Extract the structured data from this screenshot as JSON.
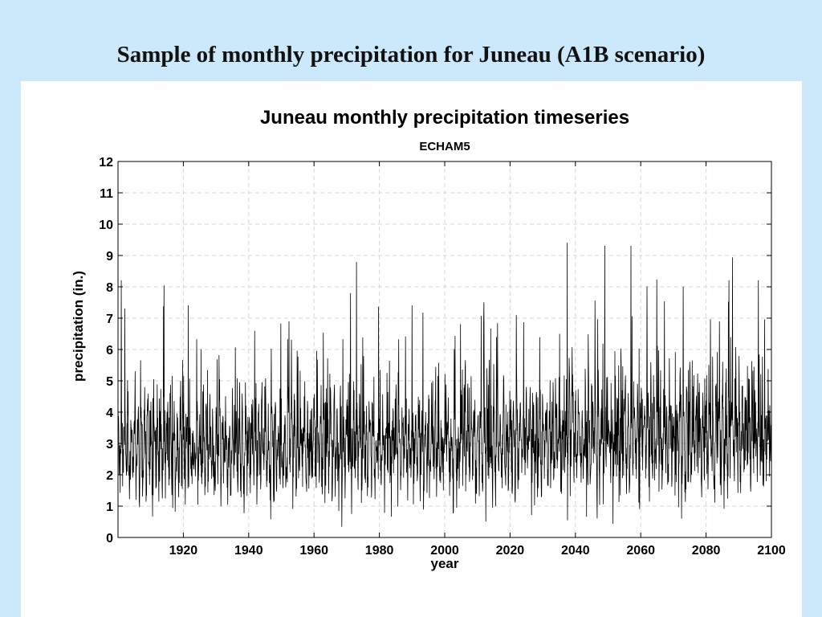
{
  "slide": {
    "title": "Sample of monthly precipitation for Juneau (A1B scenario)"
  },
  "colors": {
    "background": "#cce9fb",
    "panel": "#ffffff",
    "series": "#000000",
    "grid": "#d6d6d6"
  },
  "chart_data": {
    "type": "line",
    "title": "Juneau monthly precipitation timeseries",
    "subtitle": "ECHAM5",
    "xlabel": "year",
    "ylabel": "precipitation (in.)",
    "xlim": [
      1900,
      2100
    ],
    "ylim": [
      0,
      12
    ],
    "x_ticks": [
      1920,
      1940,
      1960,
      1980,
      2000,
      2020,
      2040,
      2060,
      2080,
      2100
    ],
    "y_ticks": [
      0,
      1,
      2,
      3,
      4,
      5,
      6,
      7,
      8,
      9,
      10,
      11,
      12
    ],
    "grid": true,
    "legend": "none",
    "series": [
      {
        "x_start": 1900,
        "x_step": "1 month",
        "trend_note_values": {
          "mean_1900_2000": 2.9,
          "mean_2040_2100": 3.3
        },
        "notable_peaks": [
          {
            "x": 1901.0,
            "y": 8.2
          },
          {
            "x": 1921.5,
            "y": 7.4
          },
          {
            "x": 1990.0,
            "y": 7.4
          },
          {
            "x": 2012.0,
            "y": 7.5
          },
          {
            "x": 2037.5,
            "y": 9.4
          },
          {
            "x": 2049.0,
            "y": 9.3
          },
          {
            "x": 2057.0,
            "y": 9.3
          },
          {
            "x": 2073.0,
            "y": 8.0
          },
          {
            "x": 2087.0,
            "y": 8.2
          },
          {
            "x": 2096.0,
            "y": 8.2
          }
        ]
      }
    ]
  }
}
